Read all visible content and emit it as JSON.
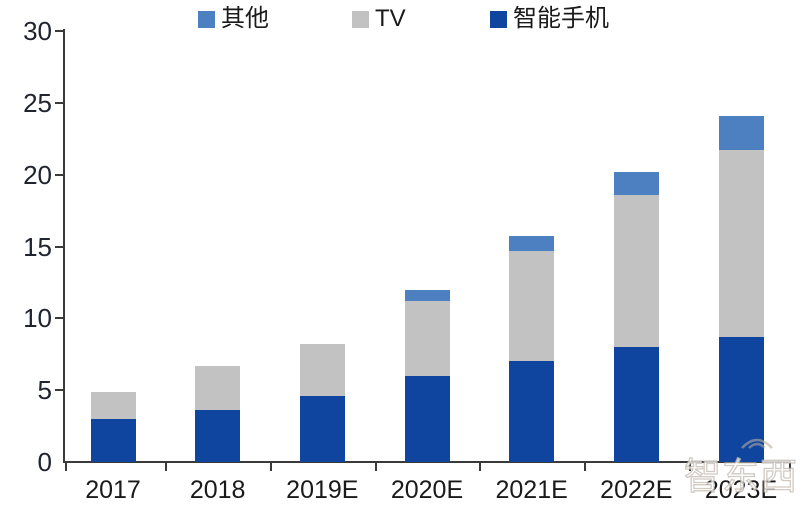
{
  "chart": {
    "watermark": "智东西"
  },
  "chart_data": {
    "type": "bar",
    "stacked": true,
    "title": "",
    "xlabel": "",
    "ylabel": "",
    "categories": [
      "2017",
      "2018",
      "2019E",
      "2020E",
      "2021E",
      "2022E",
      "2023E"
    ],
    "series": [
      {
        "key": "smartphone",
        "name": "智能手机",
        "color": "#10459f",
        "values": [
          3.0,
          3.6,
          4.6,
          6.0,
          7.0,
          8.0,
          8.7
        ]
      },
      {
        "key": "tv",
        "name": "TV",
        "color": "#c2c2c2",
        "values": [
          1.9,
          3.1,
          3.6,
          5.2,
          7.7,
          10.6,
          13.0
        ]
      },
      {
        "key": "other",
        "name": "其他",
        "color": "#4d80c1",
        "values": [
          0,
          0,
          0,
          0.8,
          1.0,
          1.6,
          2.4
        ]
      }
    ],
    "legend_order": [
      "other",
      "tv",
      "smartphone"
    ],
    "legend_position": "top",
    "ylim": [
      0,
      30
    ],
    "yticks": [
      0,
      5,
      10,
      15,
      20,
      25,
      30
    ],
    "grid": false,
    "axis_color": "#3a3a3a",
    "text_color": "#1a1a1a"
  }
}
